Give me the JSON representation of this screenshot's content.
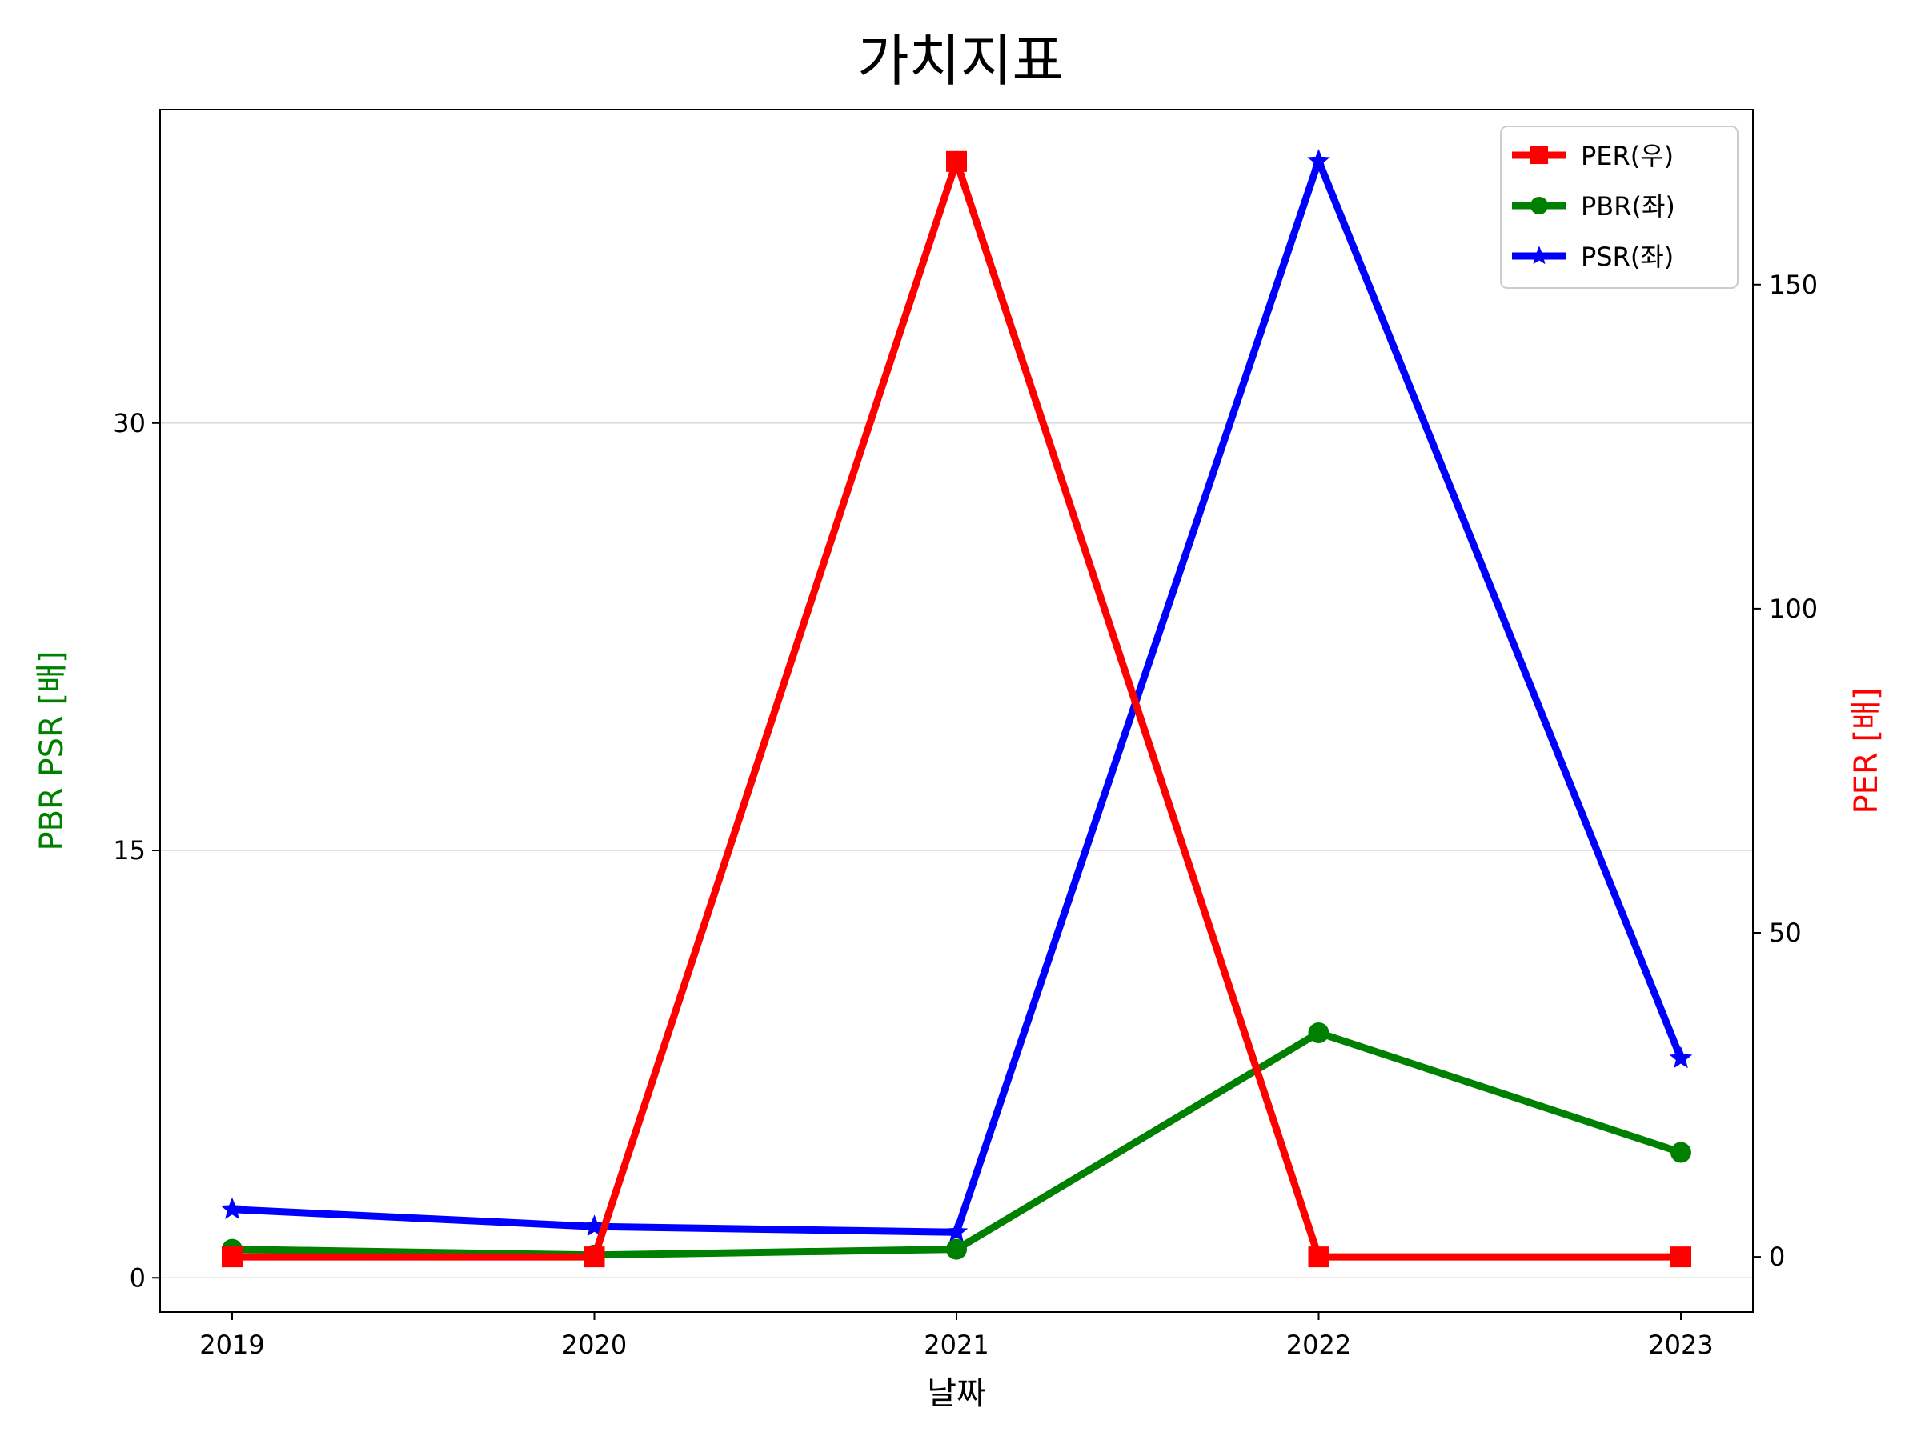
{
  "chart_data": {
    "type": "line",
    "title": "가치지표",
    "xlabel": "날짜",
    "ylabel_left": "PBR PSR [배]",
    "ylabel_right": "PER [배]",
    "categories": [
      "2019",
      "2020",
      "2021",
      "2022",
      "2023"
    ],
    "y_left": {
      "ylim": [
        -1.2,
        41
      ],
      "ticks": [
        0,
        15,
        30
      ],
      "grid": true
    },
    "y_right": {
      "ylim": [
        -8.5,
        177
      ],
      "ticks": [
        0,
        50,
        100,
        150
      ]
    },
    "series": [
      {
        "name": "PER(우)",
        "axis": "right",
        "color": "#ff0000",
        "marker": "square",
        "values": [
          0,
          0,
          169,
          0,
          0
        ]
      },
      {
        "name": "PBR(좌)",
        "axis": "left",
        "color": "#008000",
        "marker": "circle",
        "values": [
          1.0,
          0.8,
          1.0,
          8.6,
          4.4
        ]
      },
      {
        "name": "PSR(좌)",
        "axis": "left",
        "color": "#0000ff",
        "marker": "star",
        "values": [
          2.4,
          1.8,
          1.6,
          39.2,
          7.7
        ]
      }
    ],
    "legend_position": "top-right",
    "ylabel_left_color": "#008000",
    "ylabel_right_color": "#ff0000"
  }
}
